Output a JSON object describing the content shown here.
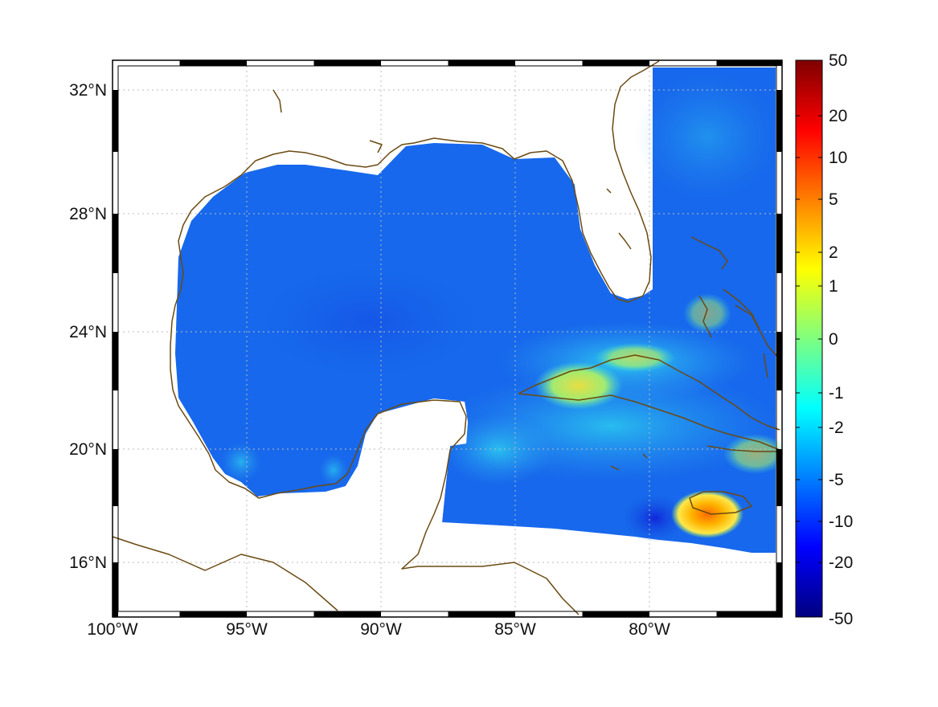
{
  "map": {
    "lon_ticks": [
      "100°W",
      "95°W",
      "90°W",
      "85°W",
      "80°W"
    ],
    "lat_ticks": [
      "32°N",
      "28°N",
      "24°N",
      "20°N",
      "16°N"
    ],
    "coast_color": "#6b4a12",
    "grid": true,
    "frame": "black-white checkered"
  },
  "colorbar": {
    "ticks": [
      "50",
      "20",
      "10",
      "5",
      "2",
      "1",
      "0",
      "-1",
      "-2",
      "-5",
      "-10",
      "-20",
      "-50"
    ],
    "colormap": "jet",
    "colors": [
      "#7f0000",
      "#ff0000",
      "#ff7f00",
      "#ffff00",
      "#7fff7f",
      "#00ffff",
      "#007fff",
      "#0000ff",
      "#00007f"
    ]
  }
}
